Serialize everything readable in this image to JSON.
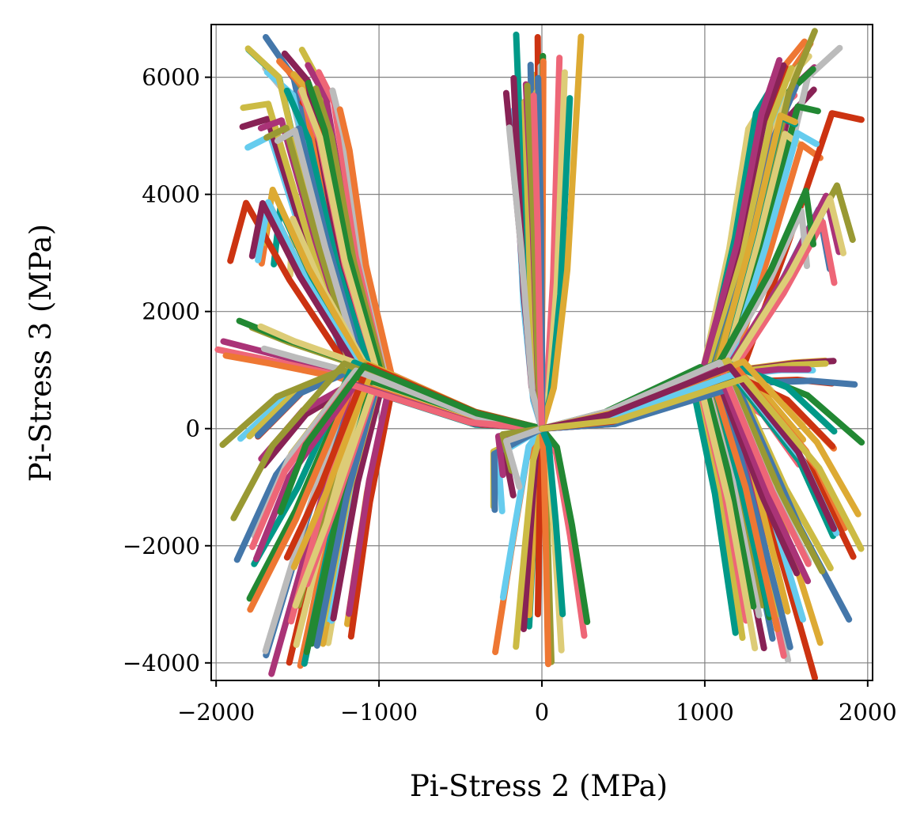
{
  "chart_data": {
    "type": "line",
    "title": "",
    "xlabel": "Pi-Stress 2 (MPa)",
    "ylabel": "Pi-Stress 3 (MPa)",
    "xlim": [
      -2030,
      2030
    ],
    "ylim": [
      -4300,
      6900
    ],
    "xticks": [
      -2000,
      -1000,
      0,
      1000,
      2000
    ],
    "yticks": [
      -4000,
      -2000,
      0,
      2000,
      4000,
      6000
    ],
    "xtick_labels": [
      "−2000",
      "−1000",
      "0",
      "1000",
      "2000"
    ],
    "ytick_labels": [
      "−4000",
      "−2000",
      "0",
      "2000",
      "4000",
      "6000"
    ],
    "grid": true,
    "legend": "none",
    "palette": [
      "#882255",
      "#aa3377",
      "#ee6677",
      "#ee7733",
      "#cc3311",
      "#ccbb44",
      "#999933",
      "#228833",
      "#009988",
      "#66ccee",
      "#4477aa",
      "#bbbbbb",
      "#ddcc77",
      "#ddaa33"
    ],
    "series": [
      {
        "values": [
          [
            0,
            0
          ],
          [
            -400,
            180
          ],
          [
            -1050,
            900
          ],
          [
            -1280,
            3400
          ],
          [
            -1450,
            5700
          ],
          [
            -1600,
            6300
          ]
        ]
      },
      {
        "values": [
          [
            0,
            0
          ],
          [
            -420,
            200
          ],
          [
            -1100,
            920
          ],
          [
            -1350,
            3600
          ],
          [
            -1520,
            5900
          ],
          [
            -1680,
            6350
          ]
        ]
      },
      {
        "values": [
          [
            0,
            0
          ],
          [
            -380,
            160
          ],
          [
            -1000,
            880
          ],
          [
            -1220,
            3000
          ],
          [
            -1380,
            5200
          ],
          [
            -1500,
            6100
          ]
        ]
      },
      {
        "values": [
          [
            0,
            0
          ],
          [
            -450,
            210
          ],
          [
            -1150,
            950
          ],
          [
            -1420,
            3300
          ],
          [
            -1640,
            5400
          ],
          [
            -1780,
            5300
          ]
        ]
      },
      {
        "values": [
          [
            0,
            0
          ],
          [
            -420,
            190
          ],
          [
            -1150,
            980
          ],
          [
            -1500,
            2500
          ],
          [
            -1750,
            3800
          ],
          [
            -1830,
            2800
          ]
        ]
      },
      {
        "values": [
          [
            0,
            0
          ],
          [
            -430,
            190
          ],
          [
            -1200,
            1000
          ],
          [
            -1600,
            1300
          ],
          [
            -1850,
            1500
          ]
        ]
      },
      {
        "values": [
          [
            0,
            0
          ],
          [
            -420,
            190
          ],
          [
            -1150,
            960
          ],
          [
            -1500,
            500
          ],
          [
            -1780,
            -300
          ]
        ]
      },
      {
        "values": [
          [
            0,
            0
          ],
          [
            -400,
            180
          ],
          [
            -1050,
            880
          ],
          [
            -1250,
            -1200
          ],
          [
            -1430,
            -3600
          ]
        ]
      },
      {
        "values": [
          [
            0,
            0
          ],
          [
            -410,
            185
          ],
          [
            -1100,
            900
          ],
          [
            -1350,
            -1500
          ],
          [
            -1560,
            -3700
          ]
        ]
      },
      {
        "values": [
          [
            0,
            0
          ],
          [
            -400,
            180
          ],
          [
            -1000,
            850
          ],
          [
            -1180,
            -1000
          ],
          [
            -1350,
            -3400
          ]
        ]
      },
      {
        "values": [
          [
            0,
            0
          ],
          [
            -420,
            190
          ],
          [
            -1120,
            920
          ],
          [
            -1450,
            -1300
          ],
          [
            -1700,
            -2700
          ]
        ]
      },
      {
        "values": [
          [
            0,
            0
          ],
          [
            -430,
            195
          ],
          [
            -1180,
            960
          ],
          [
            -1600,
            -500
          ],
          [
            -1820,
            -1800
          ]
        ]
      },
      {
        "values": [
          [
            0,
            0
          ],
          [
            -30,
            600
          ],
          [
            -70,
            2500
          ],
          [
            -110,
            6300
          ]
        ]
      },
      {
        "values": [
          [
            0,
            0
          ],
          [
            30,
            600
          ],
          [
            70,
            2500
          ],
          [
            110,
            6300
          ]
        ]
      },
      {
        "values": [
          [
            0,
            0
          ],
          [
            -40,
            800
          ],
          [
            -90,
            3500
          ],
          [
            -150,
            6000
          ]
        ]
      },
      {
        "values": [
          [
            0,
            0
          ],
          [
            -50,
            -400
          ],
          [
            -100,
            -1800
          ],
          [
            -150,
            -3300
          ]
        ]
      },
      {
        "values": [
          [
            0,
            0
          ],
          [
            50,
            -400
          ],
          [
            100,
            -1800
          ],
          [
            150,
            -3500
          ]
        ]
      },
      {
        "values": [
          [
            0,
            0
          ],
          [
            -250,
            -300
          ],
          [
            -200,
            -1200
          ]
        ]
      },
      {
        "values": [
          [
            0,
            0
          ],
          [
            400,
            180
          ],
          [
            1050,
            900
          ],
          [
            1280,
            3400
          ],
          [
            1450,
            5700
          ],
          [
            1600,
            6300
          ]
        ]
      },
      {
        "values": [
          [
            0,
            0
          ],
          [
            420,
            200
          ],
          [
            1100,
            920
          ],
          [
            1350,
            3600
          ],
          [
            1520,
            5900
          ],
          [
            1680,
            6350
          ]
        ]
      },
      {
        "values": [
          [
            0,
            0
          ],
          [
            380,
            160
          ],
          [
            1000,
            880
          ],
          [
            1220,
            3000
          ],
          [
            1380,
            5200
          ],
          [
            1500,
            6100
          ]
        ]
      },
      {
        "values": [
          [
            0,
            0
          ],
          [
            450,
            210
          ],
          [
            1150,
            950
          ],
          [
            1420,
            3300
          ],
          [
            1640,
            5400
          ],
          [
            1780,
            5300
          ]
        ]
      },
      {
        "values": [
          [
            0,
            0
          ],
          [
            420,
            190
          ],
          [
            1150,
            980
          ],
          [
            1500,
            2500
          ],
          [
            1750,
            3800
          ],
          [
            1830,
            2800
          ]
        ]
      },
      {
        "values": [
          [
            0,
            0
          ],
          [
            430,
            190
          ],
          [
            1200,
            1000
          ],
          [
            1600,
            1150
          ],
          [
            1850,
            1200
          ]
        ]
      },
      {
        "values": [
          [
            0,
            0
          ],
          [
            420,
            190
          ],
          [
            1150,
            960
          ],
          [
            1500,
            500
          ],
          [
            1780,
            -300
          ]
        ]
      },
      {
        "values": [
          [
            0,
            0
          ],
          [
            400,
            180
          ],
          [
            1050,
            880
          ],
          [
            1250,
            -1200
          ],
          [
            1430,
            -3600
          ]
        ]
      },
      {
        "values": [
          [
            0,
            0
          ],
          [
            410,
            185
          ],
          [
            1100,
            900
          ],
          [
            1350,
            -1500
          ],
          [
            1560,
            -3700
          ]
        ]
      },
      {
        "values": [
          [
            0,
            0
          ],
          [
            400,
            180
          ],
          [
            1000,
            850
          ],
          [
            1180,
            -1000
          ],
          [
            1350,
            -3400
          ]
        ]
      },
      {
        "values": [
          [
            0,
            0
          ],
          [
            420,
            190
          ],
          [
            1120,
            920
          ],
          [
            1450,
            -1300
          ],
          [
            1700,
            -2700
          ]
        ]
      },
      {
        "values": [
          [
            0,
            0
          ],
          [
            430,
            195
          ],
          [
            1180,
            960
          ],
          [
            1600,
            -500
          ],
          [
            1820,
            -1800
          ]
        ]
      }
    ]
  }
}
